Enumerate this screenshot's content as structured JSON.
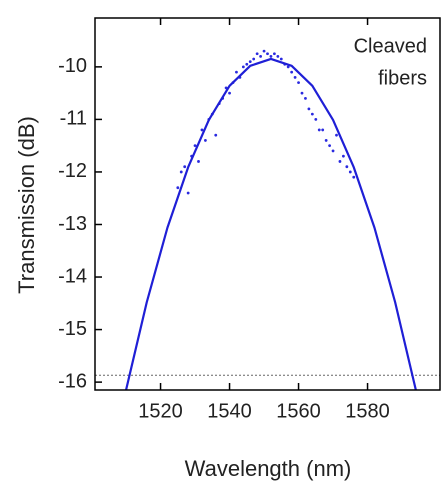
{
  "chart_data": {
    "type": "scatter",
    "xlabel": "Wavelength (nm)",
    "ylabel": "Transmission (dB)",
    "annotation": [
      "Cleaved",
      "fibers"
    ],
    "xlim": [
      1501,
      1601
    ],
    "ylim": [
      -16.15,
      -9.07
    ],
    "xticks": [
      1520,
      1540,
      1560,
      1580
    ],
    "yticks": [
      -10,
      -11,
      -12,
      -13,
      -14,
      -15,
      -16
    ],
    "reference_line": -15.87,
    "series": [
      {
        "type": "scatter",
        "color": "#2a2ae0",
        "x": [
          1525,
          1526,
          1527,
          1528,
          1529,
          1530,
          1531,
          1532,
          1533,
          1534,
          1535,
          1536,
          1537,
          1538,
          1539,
          1540,
          1541,
          1542,
          1543,
          1544,
          1545,
          1546,
          1547,
          1548,
          1549,
          1550,
          1551,
          1552,
          1553,
          1554,
          1555,
          1556,
          1557,
          1558,
          1559,
          1560,
          1561,
          1562,
          1563,
          1564,
          1565,
          1566,
          1567,
          1568,
          1569,
          1570,
          1571,
          1572,
          1573,
          1574,
          1575,
          1576
        ],
        "values": [
          -12.3,
          -12.0,
          -11.9,
          -12.4,
          -11.7,
          -11.5,
          -11.8,
          -11.2,
          -11.4,
          -11.0,
          -10.9,
          -11.3,
          -10.7,
          -10.6,
          -10.4,
          -10.5,
          -10.3,
          -10.1,
          -10.2,
          -10.0,
          -9.95,
          -9.9,
          -9.85,
          -9.75,
          -9.8,
          -9.7,
          -9.75,
          -9.8,
          -9.75,
          -9.8,
          -9.85,
          -9.95,
          -10.0,
          -10.1,
          -10.2,
          -10.3,
          -10.5,
          -10.6,
          -10.8,
          -10.9,
          -11.0,
          -11.2,
          -11.2,
          -11.4,
          -11.5,
          -11.6,
          -11.3,
          -11.8,
          -11.7,
          -11.9,
          -12.0,
          -12.1
        ]
      },
      {
        "type": "line",
        "color": "#1f1fd6",
        "x": [
          1510,
          1516,
          1522,
          1528,
          1534,
          1540,
          1546,
          1552,
          1558,
          1564,
          1570,
          1576,
          1582,
          1588,
          1594
        ],
        "values": [
          -16.15,
          -14.48,
          -13.06,
          -11.91,
          -11.01,
          -10.36,
          -9.98,
          -9.85,
          -9.98,
          -10.36,
          -11.01,
          -11.91,
          -13.06,
          -14.48,
          -16.15
        ]
      }
    ]
  }
}
